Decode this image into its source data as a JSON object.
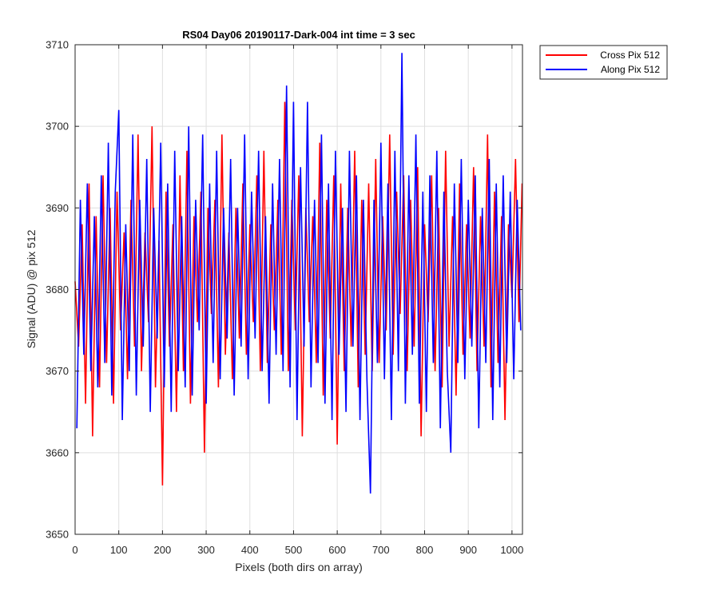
{
  "chart_data": {
    "type": "line",
    "title": "RS04 Day06 20190117-Dark-004 int time = 3 sec",
    "xlabel": "Pixels (both dirs on array)",
    "ylabel": "Signal (ADU) @ pix 512",
    "xlim": [
      0,
      1024
    ],
    "ylim": [
      3650,
      3710
    ],
    "xticks": [
      0,
      100,
      200,
      300,
      400,
      500,
      600,
      700,
      800,
      900,
      1000
    ],
    "yticks": [
      3650,
      3660,
      3670,
      3680,
      3690,
      3700,
      3710
    ],
    "grid": true,
    "legend_position": "outside-top-right",
    "series": [
      {
        "name": "Cross Pix 512",
        "color": "#ff0000",
        "sampling": "every 8 pixels (approximate trace of noise)",
        "x": [
          0,
          8,
          16,
          24,
          32,
          40,
          48,
          56,
          64,
          72,
          80,
          88,
          96,
          104,
          112,
          120,
          128,
          136,
          144,
          152,
          160,
          168,
          176,
          184,
          192,
          200,
          208,
          216,
          224,
          232,
          240,
          248,
          256,
          264,
          272,
          280,
          288,
          296,
          304,
          312,
          320,
          328,
          336,
          344,
          352,
          360,
          368,
          376,
          384,
          392,
          400,
          408,
          416,
          424,
          432,
          440,
          448,
          456,
          464,
          472,
          480,
          488,
          496,
          504,
          512,
          520,
          528,
          536,
          544,
          552,
          560,
          568,
          576,
          584,
          592,
          600,
          608,
          616,
          624,
          632,
          640,
          648,
          656,
          664,
          672,
          680,
          688,
          696,
          704,
          712,
          720,
          728,
          736,
          744,
          752,
          760,
          768,
          776,
          784,
          792,
          800,
          808,
          816,
          824,
          832,
          840,
          848,
          856,
          864,
          872,
          880,
          888,
          896,
          904,
          912,
          920,
          928,
          936,
          944,
          952,
          960,
          968,
          976,
          984,
          992,
          1000,
          1008,
          1016,
          1023
        ],
        "values": [
          3681,
          3673,
          3688,
          3666,
          3693,
          3662,
          3689,
          3668,
          3694,
          3671,
          3690,
          3666,
          3692,
          3675,
          3687,
          3669,
          3691,
          3673,
          3699,
          3670,
          3687,
          3676,
          3700,
          3668,
          3686,
          3656,
          3692,
          3673,
          3688,
          3665,
          3694,
          3670,
          3697,
          3666,
          3689,
          3676,
          3692,
          3660,
          3690,
          3677,
          3691,
          3668,
          3699,
          3672,
          3687,
          3669,
          3690,
          3674,
          3693,
          3672,
          3688,
          3676,
          3694,
          3670,
          3697,
          3671,
          3688,
          3675,
          3691,
          3672,
          3703,
          3670,
          3691,
          3675,
          3694,
          3662,
          3690,
          3676,
          3689,
          3671,
          3698,
          3667,
          3691,
          3674,
          3694,
          3661,
          3693,
          3670,
          3690,
          3673,
          3697,
          3668,
          3691,
          3672,
          3693,
          3670,
          3696,
          3671,
          3689,
          3675,
          3699,
          3672,
          3692,
          3677,
          3694,
          3670,
          3691,
          3673,
          3695,
          3662,
          3688,
          3676,
          3694,
          3670,
          3690,
          3668,
          3697,
          3673,
          3689,
          3667,
          3693,
          3672,
          3688,
          3674,
          3695,
          3670,
          3689,
          3673,
          3699,
          3668,
          3692,
          3671,
          3689,
          3664,
          3688,
          3679,
          3696,
          3676,
          3693
        ]
      },
      {
        "name": "Along Pix 512",
        "color": "#0000ff",
        "sampling": "every 8 pixels (approximate trace of noise)",
        "x": [
          4,
          12,
          20,
          28,
          36,
          44,
          52,
          60,
          68,
          76,
          84,
          92,
          100,
          108,
          116,
          124,
          132,
          140,
          148,
          156,
          164,
          172,
          180,
          188,
          196,
          204,
          212,
          220,
          228,
          236,
          244,
          252,
          260,
          268,
          276,
          284,
          292,
          300,
          308,
          316,
          324,
          332,
          340,
          348,
          356,
          364,
          372,
          380,
          388,
          396,
          404,
          412,
          420,
          428,
          436,
          444,
          452,
          460,
          468,
          476,
          484,
          492,
          500,
          508,
          516,
          524,
          532,
          540,
          548,
          556,
          564,
          572,
          580,
          588,
          596,
          604,
          612,
          620,
          628,
          636,
          644,
          652,
          660,
          668,
          676,
          684,
          692,
          700,
          708,
          716,
          724,
          732,
          740,
          748,
          756,
          764,
          772,
          780,
          788,
          796,
          804,
          812,
          820,
          828,
          836,
          844,
          852,
          860,
          868,
          876,
          884,
          892,
          900,
          908,
          916,
          924,
          932,
          940,
          948,
          956,
          964,
          972,
          980,
          988,
          996,
          1004,
          1012,
          1020
        ],
        "values": [
          3663,
          3691,
          3672,
          3693,
          3670,
          3689,
          3668,
          3694,
          3671,
          3698,
          3667,
          3692,
          3702,
          3664,
          3688,
          3670,
          3699,
          3667,
          3691,
          3673,
          3696,
          3665,
          3690,
          3674,
          3698,
          3668,
          3693,
          3665,
          3697,
          3670,
          3689,
          3668,
          3700,
          3667,
          3691,
          3675,
          3699,
          3666,
          3693,
          3671,
          3697,
          3669,
          3690,
          3674,
          3696,
          3667,
          3690,
          3673,
          3699,
          3669,
          3692,
          3674,
          3697,
          3670,
          3689,
          3666,
          3693,
          3672,
          3696,
          3670,
          3705,
          3668,
          3703,
          3664,
          3695,
          3673,
          3703,
          3668,
          3691,
          3671,
          3699,
          3666,
          3693,
          3664,
          3697,
          3672,
          3690,
          3665,
          3697,
          3673,
          3694,
          3664,
          3691,
          3669,
          3655,
          3691,
          3671,
          3698,
          3669,
          3693,
          3664,
          3697,
          3670,
          3709,
          3666,
          3694,
          3672,
          3699,
          3666,
          3692,
          3665,
          3694,
          3671,
          3697,
          3663,
          3692,
          3670,
          3660,
          3693,
          3671,
          3696,
          3669,
          3691,
          3673,
          3694,
          3663,
          3690,
          3671,
          3696,
          3664,
          3693,
          3668,
          3694,
          3671,
          3692,
          3669,
          3691,
          3675
        ]
      }
    ]
  }
}
